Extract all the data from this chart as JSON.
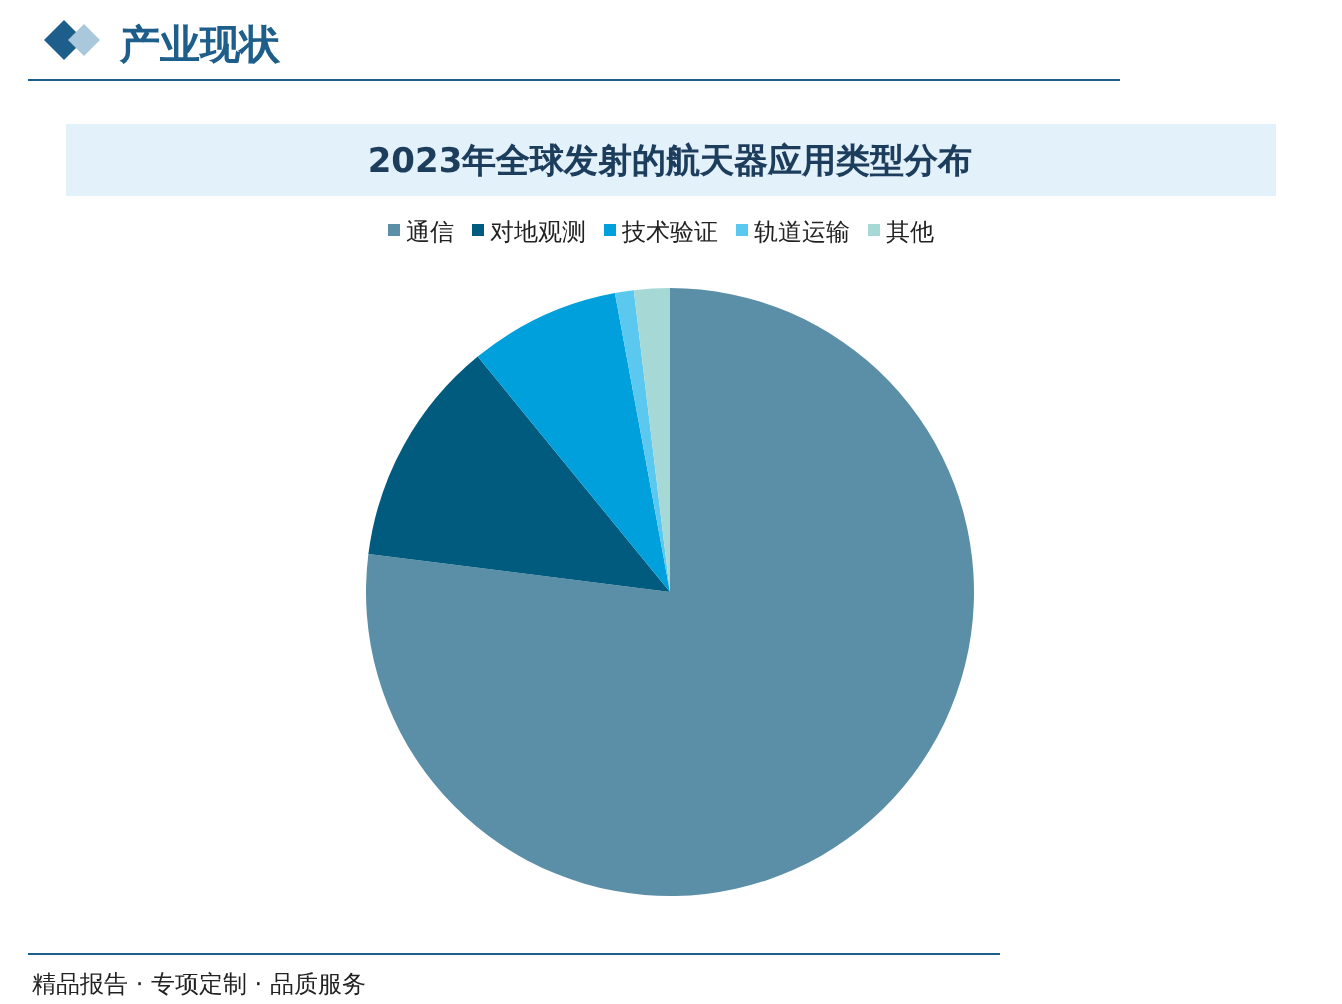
{
  "chart_data": {
    "type": "pie",
    "title": "2023年全球发射的航天器应用类型分布",
    "categories": [
      "通信",
      "对地观测",
      "技术验证",
      "轨道运输",
      "其他"
    ],
    "values": [
      77,
      12.1,
      8,
      1,
      1.9
    ],
    "colors": [
      "#5b8fa8",
      "#005b7f",
      "#00a0dc",
      "#5bc8f0",
      "#a6d9d6"
    ],
    "legend": "top",
    "annotations": [
      "产业现状",
      "精品报告 · 专项定制 · 品质服务"
    ]
  }
}
